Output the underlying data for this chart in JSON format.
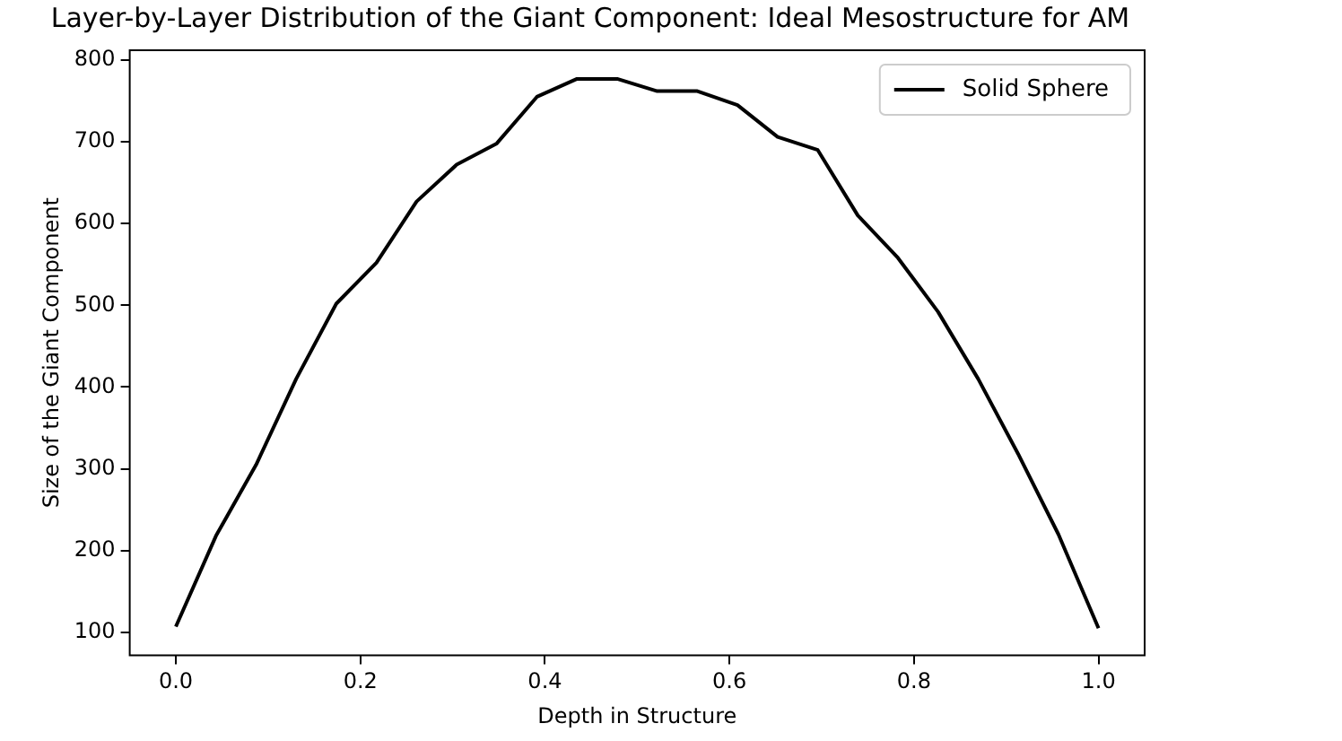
{
  "chart_data": {
    "type": "line",
    "title": "Layer-by-Layer Distribution of the Giant Component: Ideal Mesostructure for AM",
    "xlabel": "Depth in Structure",
    "ylabel": "Size of the Giant Component",
    "x": [
      0,
      0.0435,
      0.087,
      0.1304,
      0.1739,
      0.2174,
      0.2609,
      0.3043,
      0.3478,
      0.3913,
      0.4348,
      0.4783,
      0.5217,
      0.5652,
      0.6087,
      0.6522,
      0.6957,
      0.7391,
      0.7826,
      0.8261,
      0.8696,
      0.913,
      0.9565,
      1.0
    ],
    "series": [
      {
        "name": "Solid Sphere",
        "color": "#000000",
        "values": [
          107,
          218,
          305,
          410,
          502,
          552,
          627,
          672,
          698,
          755,
          777,
          777,
          762,
          762,
          745,
          706,
          690,
          610,
          558,
          492,
          410,
          318,
          220,
          105
        ]
      }
    ],
    "xlim": [
      -0.05,
      1.05
    ],
    "xticks": [
      {
        "value": 0,
        "label": "0.0"
      },
      {
        "value": 0.2,
        "label": "0.2"
      },
      {
        "value": 0.4,
        "label": "0.4"
      },
      {
        "value": 0.6,
        "label": "0.6"
      },
      {
        "value": 0.8,
        "label": "0.8"
      },
      {
        "value": 1,
        "label": "1.0"
      }
    ],
    "ylim": [
      72,
      812
    ],
    "yticks": [
      100,
      200,
      300,
      400,
      500,
      600,
      700,
      800
    ],
    "grid": false,
    "legend": "top right",
    "marker": "none",
    "line_style": "solid"
  }
}
